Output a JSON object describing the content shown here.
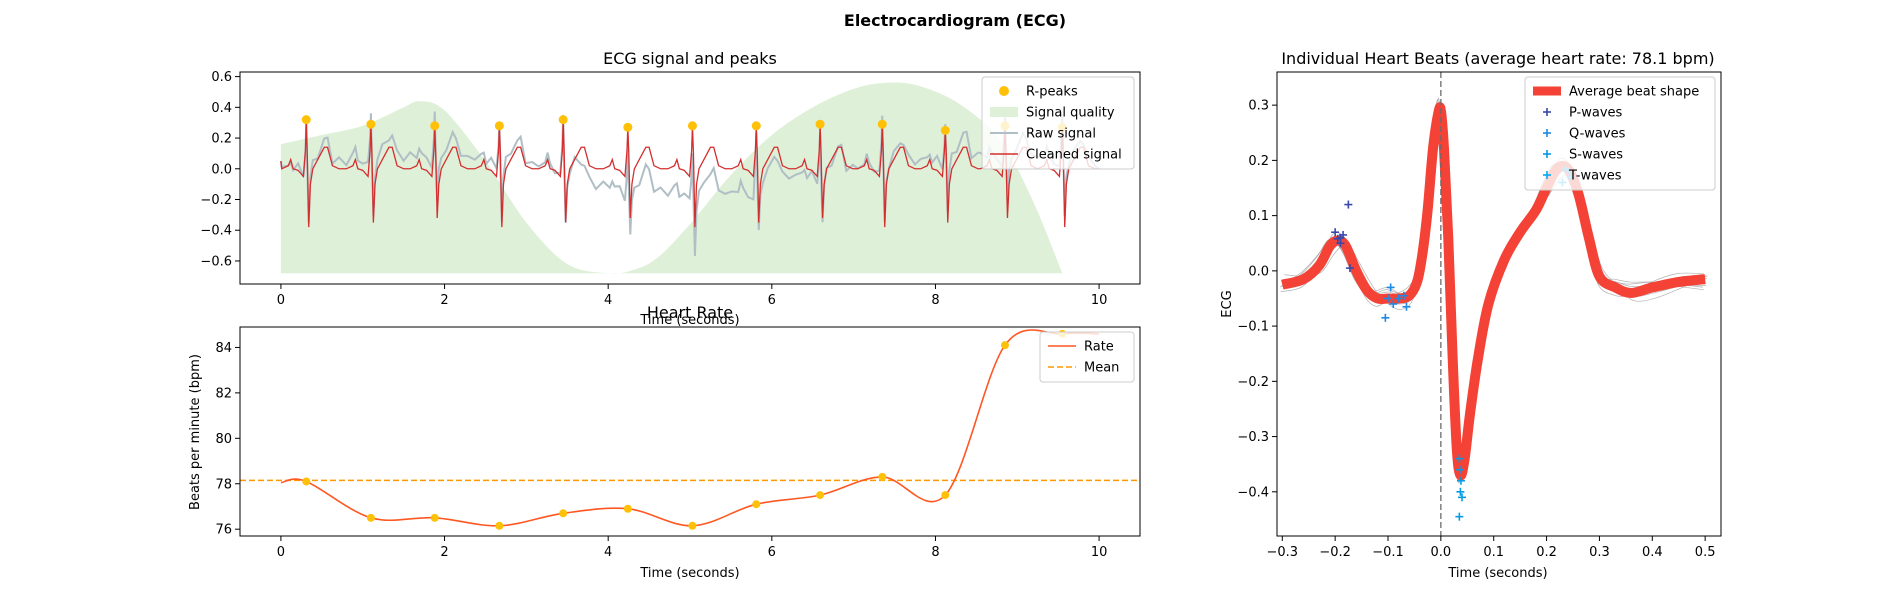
{
  "figure": {
    "title": "Electrocardiogram (ECG)"
  },
  "colors": {
    "rpeak": "#FFC107",
    "quality": "#DFF0D8",
    "raw": "#B0BEC5",
    "clean": "#D32F2F",
    "rate": "#FF5722",
    "mean": "#FF9800",
    "avg_beat": "#F44336",
    "p_wave": "#3949AB",
    "q_wave": "#1E88E5",
    "s_wave": "#039BE5",
    "t_wave": "#03A9F4"
  },
  "chart_data": [
    {
      "id": "signal",
      "type": "line",
      "title": "ECG signal and peaks",
      "xlabel": "Time (seconds)",
      "ylabel": "",
      "xlim": [
        -0.5,
        10.5
      ],
      "ylim": [
        -0.75,
        0.63
      ],
      "xticks": [
        0,
        2,
        4,
        6,
        8,
        10
      ],
      "yticks": [
        -0.6,
        -0.4,
        -0.2,
        0.0,
        0.2,
        0.4,
        0.6
      ],
      "legend": [
        "R-peaks",
        "Signal quality",
        "Raw signal",
        "Cleaned signal"
      ],
      "legend_loc": "upper right",
      "r_peaks_t": [
        0.31,
        1.1,
        1.88,
        2.67,
        3.45,
        4.24,
        5.03,
        5.81,
        6.59,
        7.35,
        8.12,
        8.85,
        9.55
      ],
      "r_peaks_y": [
        0.32,
        0.29,
        0.28,
        0.28,
        0.32,
        0.27,
        0.28,
        0.28,
        0.29,
        0.29,
        0.25,
        0.28,
        0.27
      ],
      "signal_end_t": 10.0,
      "quality_baseline": -0.68,
      "quality_t": [
        0,
        0.5,
        1.0,
        1.5,
        1.7,
        2.0,
        2.5,
        3.0,
        3.5,
        4.0,
        4.3,
        4.6,
        5.0,
        5.5,
        6.0,
        6.5,
        7.0,
        7.4,
        7.8,
        8.3,
        8.8,
        9.2,
        9.55
      ],
      "quality_y": [
        0.16,
        0.22,
        0.28,
        0.4,
        0.44,
        0.38,
        0.05,
        -0.35,
        -0.62,
        -0.68,
        -0.66,
        -0.58,
        -0.36,
        -0.04,
        0.22,
        0.4,
        0.52,
        0.56,
        0.54,
        0.42,
        0.18,
        -0.22,
        -0.68
      ]
    },
    {
      "id": "rate",
      "type": "line",
      "title": "Heart Rate",
      "xlabel": "Time (seconds)",
      "ylabel": "Beats per minute (bpm)",
      "xlim": [
        -0.5,
        10.5
      ],
      "ylim": [
        75.7,
        84.9
      ],
      "xticks": [
        0,
        2,
        4,
        6,
        8,
        10
      ],
      "yticks": [
        76,
        78,
        80,
        82,
        84
      ],
      "legend": [
        "Rate",
        "Mean"
      ],
      "legend_loc": "upper right",
      "x": [
        0.31,
        1.1,
        1.88,
        2.67,
        3.45,
        4.24,
        5.03,
        5.81,
        6.59,
        7.35,
        8.12,
        8.85,
        9.55
      ],
      "y": [
        78.1,
        76.5,
        76.5,
        76.15,
        76.7,
        76.9,
        76.15,
        77.1,
        77.5,
        78.3,
        77.5,
        84.1,
        84.6
      ],
      "start": [
        0,
        78.05
      ],
      "end": [
        10,
        84.6
      ],
      "mean": 78.15
    },
    {
      "id": "beats",
      "type": "line",
      "title": "Individual Heart Beats (average heart rate: 78.1 bpm)",
      "xlabel": "Time (seconds)",
      "ylabel": "ECG",
      "xlim": [
        -0.31,
        0.53
      ],
      "ylim": [
        -0.48,
        0.36
      ],
      "xticks": [
        -0.3,
        -0.2,
        -0.1,
        0.0,
        0.1,
        0.2,
        0.3,
        0.4,
        0.5
      ],
      "yticks": [
        -0.4,
        -0.3,
        -0.2,
        -0.1,
        0.0,
        0.1,
        0.2,
        0.3
      ],
      "legend": [
        "Average beat shape",
        "P-waves",
        "Q-waves",
        "S-waves",
        "T-waves"
      ],
      "legend_loc": "upper right",
      "avg_t": [
        -0.3,
        -0.26,
        -0.23,
        -0.21,
        -0.195,
        -0.18,
        -0.16,
        -0.14,
        -0.12,
        -0.1,
        -0.08,
        -0.06,
        -0.045,
        -0.035,
        -0.025,
        -0.015,
        -0.005,
        0.0,
        0.006,
        0.014,
        0.022,
        0.03,
        0.037,
        0.045,
        0.055,
        0.07,
        0.09,
        0.12,
        0.15,
        0.18,
        0.2,
        0.22,
        0.24,
        0.26,
        0.28,
        0.3,
        0.33,
        0.36,
        0.4,
        0.45,
        0.5
      ],
      "avg_y": [
        -0.025,
        -0.015,
        0.01,
        0.045,
        0.055,
        0.045,
        0.0,
        -0.035,
        -0.05,
        -0.05,
        -0.05,
        -0.045,
        -0.02,
        0.03,
        0.11,
        0.22,
        0.285,
        0.29,
        0.22,
        0.06,
        -0.15,
        -0.32,
        -0.37,
        -0.34,
        -0.26,
        -0.16,
        -0.06,
        0.02,
        0.07,
        0.11,
        0.15,
        0.185,
        0.185,
        0.14,
        0.06,
        -0.01,
        -0.03,
        -0.04,
        -0.03,
        -0.02,
        -0.015
      ],
      "p_waves": [
        [
          -0.2,
          0.07
        ],
        [
          -0.195,
          0.058
        ],
        [
          -0.19,
          0.05
        ],
        [
          -0.185,
          0.065
        ],
        [
          -0.175,
          0.12
        ],
        [
          -0.172,
          0.005
        ],
        [
          -0.19,
          0.06
        ]
      ],
      "q_waves": [
        [
          -0.1,
          -0.05
        ],
        [
          -0.09,
          -0.06
        ],
        [
          -0.08,
          -0.05
        ],
        [
          -0.07,
          -0.045
        ],
        [
          -0.105,
          -0.085
        ],
        [
          -0.095,
          -0.03
        ],
        [
          -0.065,
          -0.065
        ]
      ],
      "s_waves": [
        [
          0.035,
          -0.34
        ],
        [
          0.036,
          -0.36
        ],
        [
          0.038,
          -0.38
        ],
        [
          0.037,
          -0.4
        ],
        [
          0.035,
          -0.445
        ],
        [
          0.04,
          -0.41
        ]
      ],
      "t_waves": [
        [
          0.235,
          0.185
        ],
        [
          0.24,
          0.18
        ],
        [
          0.245,
          0.17
        ],
        [
          0.23,
          0.16
        ]
      ]
    }
  ]
}
